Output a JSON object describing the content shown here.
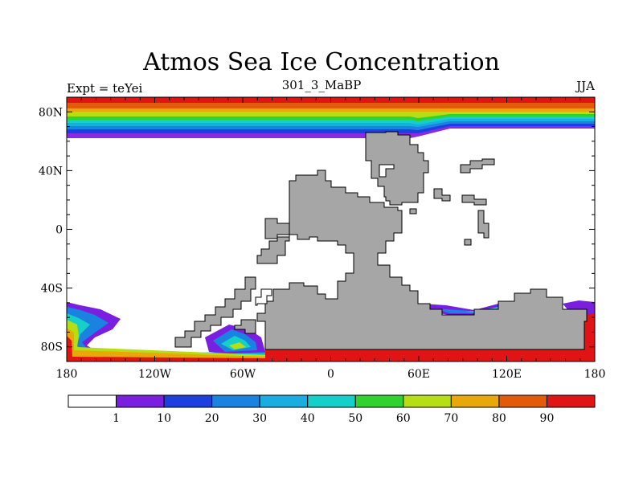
{
  "header": {
    "title": "Atmos Sea Ice Concentration",
    "left": "Expt = teYei",
    "center": "301_3_MaBP",
    "right": "JJA"
  },
  "axes": {
    "x_ticks": [
      "180",
      "120W",
      "60W",
      "0",
      "60E",
      "120E",
      "180"
    ],
    "y_ticks": [
      "80N",
      "40N",
      "0",
      "40S",
      "80S"
    ],
    "x_values": [
      -180,
      -120,
      -60,
      0,
      60,
      120,
      180
    ],
    "y_values": [
      80,
      40,
      0,
      -40,
      -80
    ],
    "xlim": [
      -180,
      180
    ],
    "ylim": [
      -90,
      90
    ]
  },
  "colorbar": {
    "labels": [
      "1",
      "10",
      "20",
      "30",
      "40",
      "50",
      "60",
      "70",
      "80",
      "90"
    ],
    "colors": [
      "#ffffff",
      "#7a1fe0",
      "#1d3fe0",
      "#1a82e0",
      "#1aaee0",
      "#14d0c8",
      "#2fd22f",
      "#b7dd14",
      "#e8a80a",
      "#e25a0a",
      "#e01414"
    ]
  },
  "colors": {
    "land": "#a6a6a6"
  }
}
